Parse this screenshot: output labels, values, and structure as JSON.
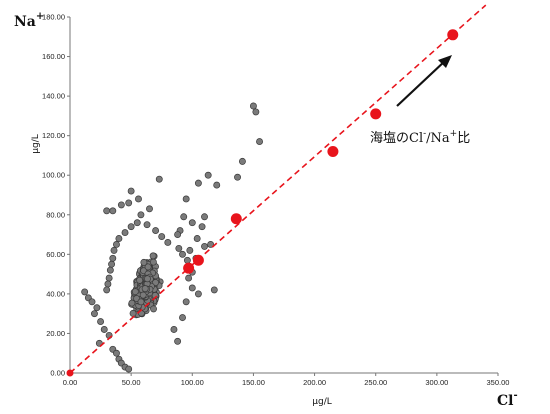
{
  "chart_data": {
    "type": "scatter",
    "title": "",
    "xlabel": "μg/L",
    "ylabel": "μg/L",
    "x_ion": {
      "base": "Cl",
      "sup": "-"
    },
    "y_ion": {
      "base": "Na",
      "sup": "+"
    },
    "xlim": [
      0,
      350
    ],
    "ylim": [
      0,
      180
    ],
    "x_ticks": [
      "0.00",
      "50.00",
      "100.00",
      "150.00",
      "200.00",
      "250.00",
      "300.00",
      "350.00"
    ],
    "y_ticks": [
      "0.00",
      "20.00",
      "40.00",
      "60.00",
      "80.00",
      "100.00",
      "120.00",
      "140.00",
      "160.00",
      "180.00"
    ],
    "grid": false,
    "annotation": {
      "base": "海塩のCl",
      "sup1": "-",
      "mid": "/Na",
      "sup2": "+",
      "tail": "比"
    },
    "series": [
      {
        "marker": "gray-circle",
        "color": "#7a7a7a",
        "points": [
          [
            150,
            135
          ],
          [
            152,
            132
          ],
          [
            155,
            117
          ],
          [
            141,
            107
          ],
          [
            137,
            99
          ],
          [
            113,
            100
          ],
          [
            120,
            95
          ],
          [
            105,
            96
          ],
          [
            95,
            88
          ],
          [
            73,
            98
          ],
          [
            50,
            92
          ],
          [
            56,
            88
          ],
          [
            48,
            86
          ],
          [
            42,
            85
          ],
          [
            35,
            82
          ],
          [
            30,
            82
          ],
          [
            58,
            80
          ],
          [
            65,
            83
          ],
          [
            93,
            79
          ],
          [
            110,
            79
          ],
          [
            100,
            76
          ],
          [
            108,
            74
          ],
          [
            90,
            72
          ],
          [
            88,
            70
          ],
          [
            104,
            68
          ],
          [
            115,
            65
          ],
          [
            110,
            64
          ],
          [
            98,
            62
          ],
          [
            12,
            41
          ],
          [
            15,
            38
          ],
          [
            18,
            36
          ],
          [
            22,
            33
          ],
          [
            20,
            30
          ],
          [
            25,
            26
          ],
          [
            28,
            22
          ],
          [
            32,
            19
          ],
          [
            24,
            15
          ],
          [
            35,
            12
          ],
          [
            38,
            10
          ],
          [
            40,
            7
          ],
          [
            42,
            5
          ],
          [
            45,
            3
          ],
          [
            48,
            2
          ],
          [
            88,
            16
          ],
          [
            85,
            22
          ],
          [
            92,
            28
          ],
          [
            95,
            36
          ],
          [
            100,
            43
          ],
          [
            105,
            40
          ],
          [
            118,
            42
          ],
          [
            97,
            48
          ],
          [
            100,
            51
          ],
          [
            96,
            57
          ],
          [
            103,
            58
          ],
          [
            92,
            60
          ],
          [
            89,
            63
          ],
          [
            80,
            66
          ],
          [
            75,
            69
          ],
          [
            70,
            72
          ],
          [
            63,
            75
          ],
          [
            55,
            76
          ],
          [
            50,
            74
          ],
          [
            45,
            71
          ],
          [
            40,
            68
          ],
          [
            38,
            65
          ],
          [
            36,
            62
          ],
          [
            35,
            58
          ],
          [
            34,
            55
          ],
          [
            33,
            52
          ],
          [
            32,
            48
          ],
          [
            31,
            45
          ],
          [
            30,
            42
          ]
        ],
        "cluster": {
          "x_min": 25,
          "x_max": 100,
          "y_min": 2,
          "y_max": 78,
          "count": 620
        }
      },
      {
        "marker": "red-circle",
        "color": "#e8141c",
        "points": [
          [
            0,
            0
          ],
          [
            97,
            53
          ],
          [
            105,
            57
          ],
          [
            136,
            78
          ],
          [
            215,
            112
          ],
          [
            250,
            131
          ],
          [
            313,
            171
          ]
        ]
      }
    ],
    "trend_line": {
      "from": [
        0,
        0
      ],
      "to": [
        340,
        186
      ],
      "color": "#e8141c",
      "style": "dashed"
    }
  }
}
